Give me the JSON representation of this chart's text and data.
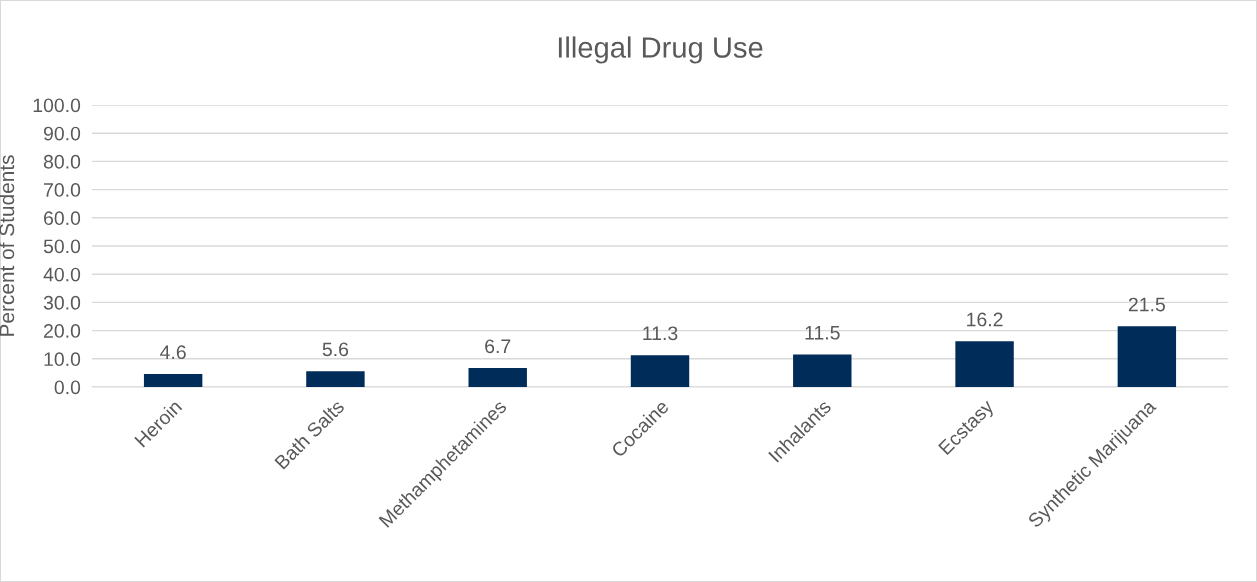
{
  "chart_data": {
    "type": "bar",
    "title": "Illegal Drug Use",
    "ylabel": "Percent of Students",
    "categories": [
      "Heroin",
      "Bath Salts",
      "Methamphetamines",
      "Cocaine",
      "Inhalants",
      "Ecstasy",
      "Synthetic Marijuana"
    ],
    "values": [
      4.6,
      5.6,
      6.7,
      11.3,
      11.5,
      16.2,
      21.5
    ],
    "color": "#002c5a",
    "ylim": [
      0,
      100
    ],
    "yticks": [
      {
        "value": 0,
        "label": "0.0"
      },
      {
        "value": 10,
        "label": "10.0"
      },
      {
        "value": 20,
        "label": "20.0"
      },
      {
        "value": 30,
        "label": "30.0"
      },
      {
        "value": 40,
        "label": "40.0"
      },
      {
        "value": 50,
        "label": "50.0"
      },
      {
        "value": 60,
        "label": "60.0"
      },
      {
        "value": 70,
        "label": "70.0"
      },
      {
        "value": 80,
        "label": "80.0"
      },
      {
        "value": 90,
        "label": "90.0"
      },
      {
        "value": 100,
        "label": "100.0"
      }
    ],
    "grid": "y",
    "data_labels": true
  }
}
